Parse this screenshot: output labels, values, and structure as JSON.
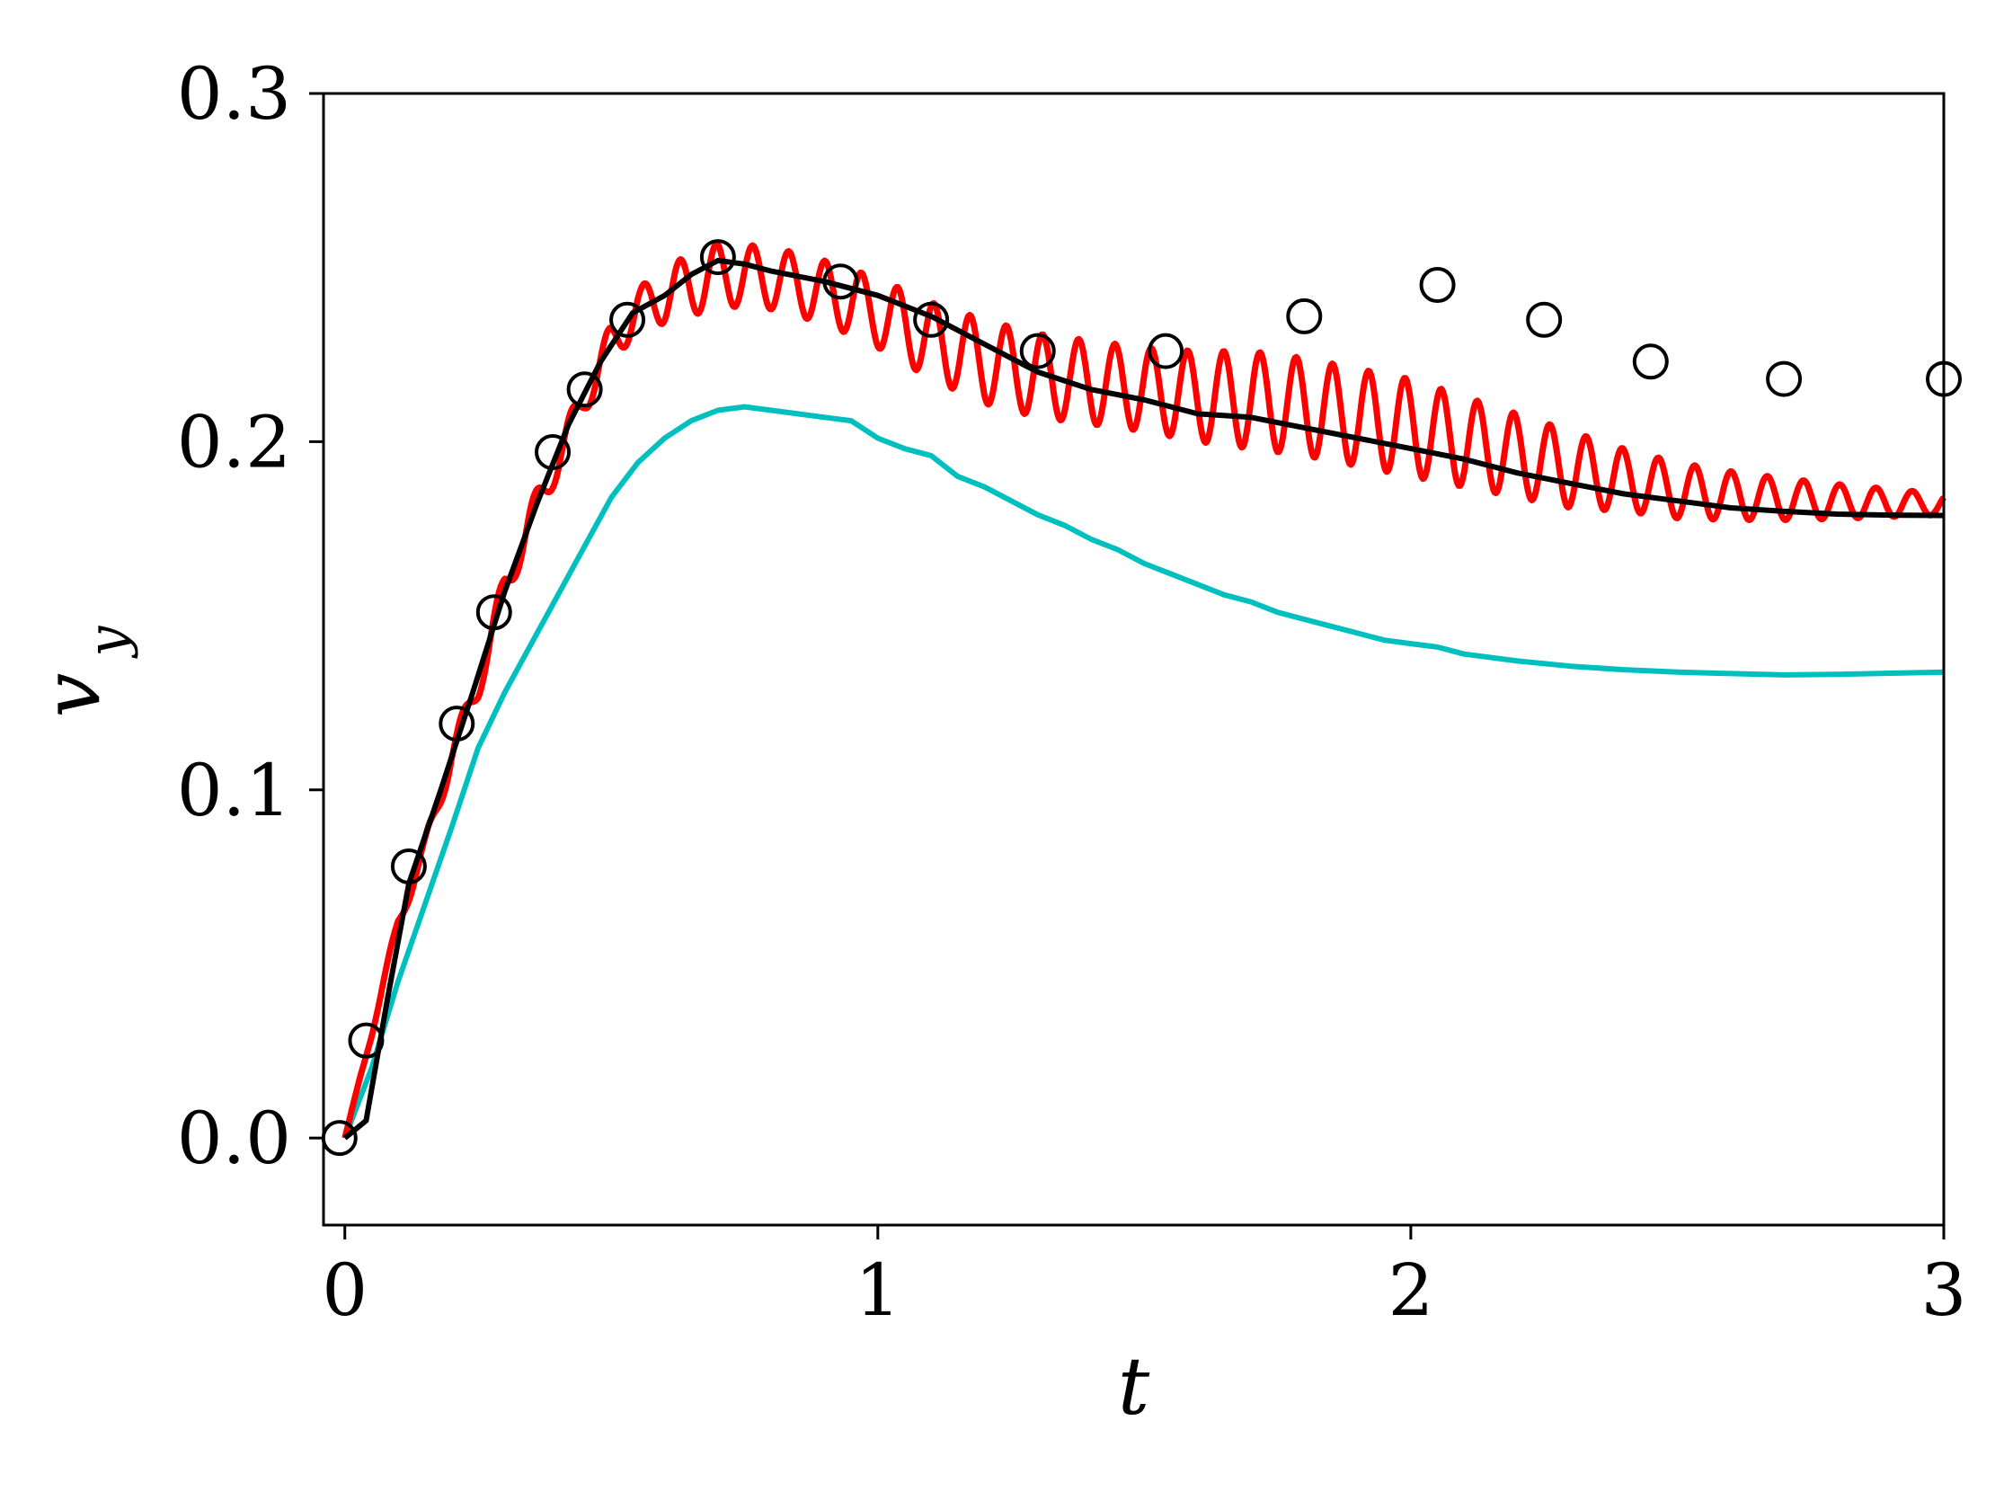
{
  "chart_data": {
    "type": "line",
    "xlabel": "t",
    "ylabel": "v",
    "ylabel_sub": "y",
    "xlim": [
      -0.04,
      3.0
    ],
    "ylim": [
      -0.025,
      0.3
    ],
    "xticks": [
      0,
      1,
      2,
      3
    ],
    "xtick_labels": [
      "0",
      "1",
      "2",
      "3"
    ],
    "yticks": [
      0.0,
      0.1,
      0.2,
      0.3
    ],
    "ytick_labels": [
      "0.0",
      "0.1",
      "0.2",
      "0.3"
    ],
    "grid": false,
    "series": [
      {
        "kind": "line",
        "color": "#00bfbf",
        "x": [
          0,
          0.05,
          0.1,
          0.15,
          0.2,
          0.25,
          0.3,
          0.35,
          0.4,
          0.45,
          0.5,
          0.55,
          0.6,
          0.65,
          0.7,
          0.75,
          0.8,
          0.85,
          0.9,
          0.95,
          1.0,
          1.05,
          1.1,
          1.15,
          1.2,
          1.25,
          1.3,
          1.35,
          1.4,
          1.45,
          1.5,
          1.55,
          1.6,
          1.65,
          1.7,
          1.75,
          1.8,
          1.85,
          1.9,
          1.95,
          2.0,
          2.05,
          2.1,
          2.2,
          2.3,
          2.4,
          2.5,
          2.6,
          2.7,
          2.8,
          2.9,
          3.0
        ],
        "y": [
          0.0,
          0.02,
          0.045,
          0.067,
          0.089,
          0.112,
          0.128,
          0.142,
          0.156,
          0.17,
          0.184,
          0.194,
          0.201,
          0.206,
          0.209,
          0.21,
          0.209,
          0.208,
          0.207,
          0.206,
          0.201,
          0.198,
          0.196,
          0.19,
          0.187,
          0.183,
          0.179,
          0.176,
          0.172,
          0.169,
          0.165,
          0.162,
          0.159,
          0.156,
          0.154,
          0.151,
          0.149,
          0.147,
          0.145,
          0.143,
          0.142,
          0.141,
          0.139,
          0.137,
          0.1355,
          0.1345,
          0.1338,
          0.1334,
          0.133,
          0.1332,
          0.1335,
          0.1338
        ]
      },
      {
        "kind": "line",
        "color": "#ff0000",
        "oscillating": true,
        "x": [
          0,
          0.05,
          0.1,
          0.15,
          0.2,
          0.25,
          0.3,
          0.35,
          0.4,
          0.45,
          0.5,
          0.55,
          0.6,
          0.65,
          0.7,
          0.8,
          0.9,
          1.0,
          1.1,
          1.2,
          1.3,
          1.4,
          1.5,
          1.6,
          1.7,
          1.8,
          1.9,
          2.0,
          2.1,
          2.2,
          2.3,
          2.4,
          2.5,
          2.6,
          2.7,
          2.8,
          2.9,
          3.0
        ],
        "y": [
          0.0,
          0.03,
          0.062,
          0.083,
          0.11,
          0.13,
          0.158,
          0.178,
          0.195,
          0.213,
          0.228,
          0.238,
          0.242,
          0.245,
          0.248,
          0.247,
          0.243,
          0.237,
          0.229,
          0.223,
          0.219,
          0.217,
          0.215,
          0.213,
          0.212,
          0.21,
          0.207,
          0.204,
          0.2,
          0.196,
          0.192,
          0.189,
          0.186,
          0.1845,
          0.1835,
          0.1828,
          0.1824,
          0.182
        ],
        "amplitude": [
          0,
          0.001,
          0.002,
          0.003,
          0.004,
          0.004,
          0.005,
          0.005,
          0.005,
          0.005,
          0.006,
          0.006,
          0.008,
          0.009,
          0.009,
          0.009,
          0.009,
          0.01,
          0.011,
          0.012,
          0.012,
          0.012,
          0.012,
          0.013,
          0.014,
          0.014,
          0.014,
          0.014,
          0.013,
          0.012,
          0.011,
          0.009,
          0.008,
          0.007,
          0.006,
          0.005,
          0.004,
          0.003
        ],
        "period": 0.068
      },
      {
        "kind": "line",
        "color": "#000000",
        "x": [
          0,
          0.04,
          0.08,
          0.12,
          0.18,
          0.24,
          0.3,
          0.36,
          0.42,
          0.48,
          0.54,
          0.6,
          0.65,
          0.7,
          0.75,
          0.8,
          0.9,
          1.0,
          1.1,
          1.2,
          1.3,
          1.4,
          1.5,
          1.6,
          1.7,
          1.8,
          1.9,
          2.0,
          2.1,
          2.2,
          2.3,
          2.4,
          2.5,
          2.6,
          2.7,
          2.8,
          2.9,
          3.0
        ],
        "y": [
          0.0,
          0.005,
          0.04,
          0.073,
          0.1,
          0.128,
          0.157,
          0.182,
          0.205,
          0.223,
          0.237,
          0.242,
          0.248,
          0.252,
          0.251,
          0.249,
          0.246,
          0.242,
          0.236,
          0.228,
          0.22,
          0.215,
          0.212,
          0.208,
          0.207,
          0.204,
          0.201,
          0.198,
          0.195,
          0.191,
          0.188,
          0.185,
          0.183,
          0.181,
          0.18,
          0.1792,
          0.1789,
          0.1788
        ]
      },
      {
        "kind": "scatter",
        "marker": "open-circle",
        "color": "#000000",
        "x": [
          -0.01,
          0.04,
          0.12,
          0.21,
          0.28,
          0.39,
          0.45,
          0.53,
          0.7,
          0.93,
          1.1,
          1.3,
          1.54,
          1.8,
          2.05,
          2.25,
          2.45,
          2.7,
          3.0
        ],
        "y": [
          0.0,
          0.028,
          0.078,
          0.119,
          0.151,
          0.197,
          0.215,
          0.235,
          0.253,
          0.246,
          0.235,
          0.226,
          0.226,
          0.236,
          0.245,
          0.235,
          0.223,
          0.218,
          0.218
        ]
      }
    ]
  }
}
